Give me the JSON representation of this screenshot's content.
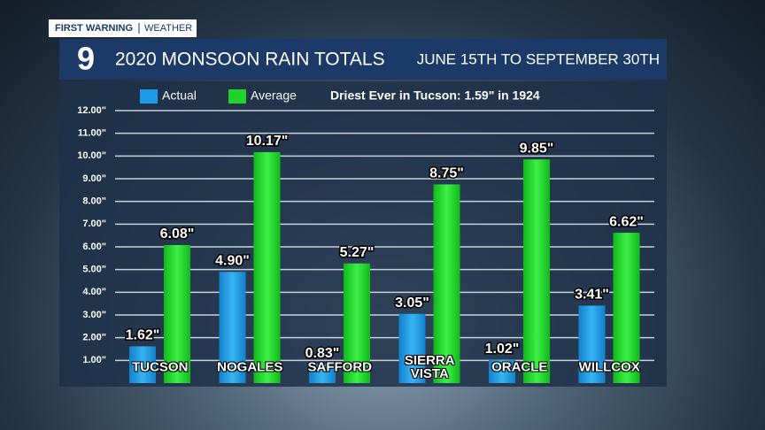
{
  "brand": {
    "tag": "FIRST WARNING",
    "section": "WEATHER",
    "logo": "9"
  },
  "chart_data": {
    "type": "bar",
    "title": "2020 MONSOON RAIN TOTALS",
    "subtitle": "JUNE 15TH TO SEPTEMBER 30TH",
    "annotation": "Driest Ever in Tucson: 1.59\" in 1924",
    "categories": [
      "TUCSON",
      "NOGALES",
      "SAFFORD",
      "SIERRA VISTA",
      "ORACLE",
      "WILLCOX"
    ],
    "series": [
      {
        "name": "Actual",
        "color": "#1c9ce6",
        "values": [
          1.62,
          4.9,
          0.83,
          3.05,
          1.02,
          3.41
        ],
        "value_labels": [
          "1.62\"",
          "4.90\"",
          "0.83\"",
          "3.05\"",
          "1.02\"",
          "3.41\""
        ]
      },
      {
        "name": "Average",
        "color": "#1fd32b",
        "values": [
          6.08,
          10.17,
          5.27,
          8.75,
          9.85,
          6.62
        ],
        "value_labels": [
          "6.08\"",
          "10.17\"",
          "5.27\"",
          "8.75\"",
          "9.85\"",
          "6.62\""
        ]
      }
    ],
    "ylim": [
      0,
      12
    ],
    "yticks": [
      {
        "value": 1,
        "label": "1.00\""
      },
      {
        "value": 2,
        "label": "2.00\""
      },
      {
        "value": 3,
        "label": "3.00\""
      },
      {
        "value": 4,
        "label": "4.00\""
      },
      {
        "value": 5,
        "label": "5.00\""
      },
      {
        "value": 6,
        "label": "6.00\""
      },
      {
        "value": 7,
        "label": "7.00\""
      },
      {
        "value": 8,
        "label": "8.00\""
      },
      {
        "value": 9,
        "label": "9.00\""
      },
      {
        "value": 10,
        "label": "10.00\""
      },
      {
        "value": 11,
        "label": "11.00\""
      },
      {
        "value": 12,
        "label": "12.00\""
      }
    ],
    "grid": true,
    "legend": "top-left"
  }
}
